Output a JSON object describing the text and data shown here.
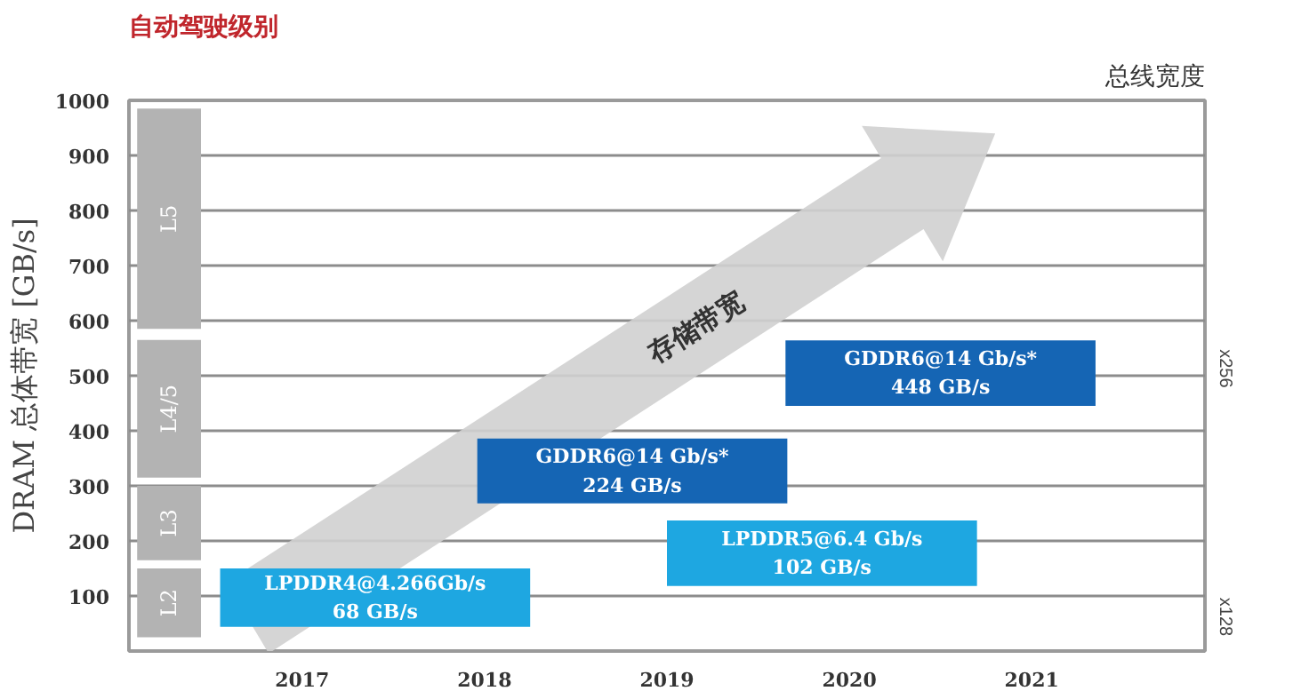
{
  "chart_data": {
    "type": "bar",
    "title": "自动驾驶级别",
    "ylabel": "DRAM 总体带宽 [GB/s]",
    "y2label": "总线宽度",
    "annotations": [
      "存储带宽",
      "x256",
      "x128"
    ],
    "series": [
      {
        "x": [
          2016.27
        ],
        "base": [
          25
        ],
        "values": [
          125
        ],
        "color": "#b3b3b3",
        "value_labels": [
          "L2"
        ]
      },
      {
        "x": [
          2016.27
        ],
        "base": [
          165
        ],
        "values": [
          135
        ],
        "color": "#b3b3b3",
        "value_labels": [
          "L3"
        ]
      },
      {
        "x": [
          2016.27
        ],
        "base": [
          315
        ],
        "values": [
          250
        ],
        "color": "#b3b3b3",
        "value_labels": [
          "L4/5"
        ]
      },
      {
        "x": [
          2016.27
        ],
        "base": [
          585
        ],
        "values": [
          400
        ],
        "color": "#b3b3b3",
        "value_labels": [
          "L5"
        ]
      },
      {
        "x": [
          2017.4,
          2018.81,
          2019.85,
          2020.5
        ],
        "base": [
          44,
          268,
          118,
          445
        ],
        "values": [
          106,
          118,
          119,
          119
        ],
        "colors": [
          "#1ea7e1",
          "#1565b4",
          "#1ea7e1",
          "#1565b4"
        ],
        "value_labels": [
          "LPDDR4@4.266Gb/s\n68 GB/s",
          "GDDR6@14 Gb/s*\n224 GB/s",
          "LPDDR5@6.4 Gb/s\n102 GB/s",
          "GDDR6@14 Gb/s*\n448 GB/s"
        ]
      }
    ],
    "xlim": [
      2016.05,
      2021.95
    ],
    "xticks": [
      2017,
      2018,
      2019,
      2020,
      2021
    ],
    "ylim": [
      0,
      1000
    ],
    "yticks": [
      100,
      200,
      300,
      400,
      500,
      600,
      700,
      800,
      900,
      1000
    ],
    "grid": "y"
  }
}
